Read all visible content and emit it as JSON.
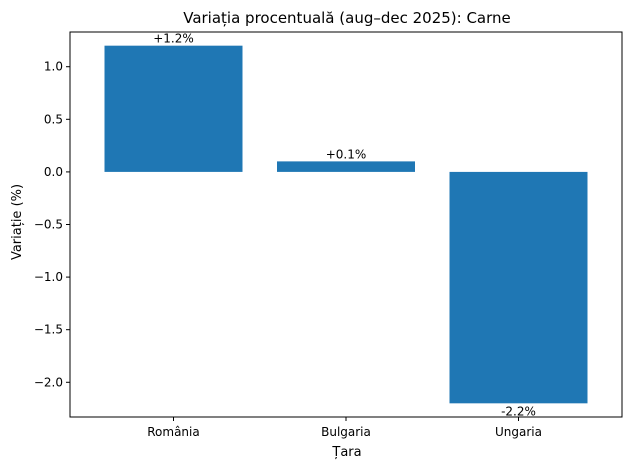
{
  "chart_data": {
    "type": "bar",
    "title": "Variația procentuală (aug–dec 2025): Carne",
    "xlabel": "Țara",
    "ylabel": "Variație (%)",
    "categories": [
      "România",
      "Bulgaria",
      "Ungaria"
    ],
    "values": [
      1.2,
      0.1,
      -2.2
    ],
    "data_labels": [
      "+1.2%",
      "+0.1%",
      "-2.2%"
    ],
    "ylim": [
      -2.33,
      1.33
    ],
    "yticks": [
      1.0,
      0.5,
      0.0,
      -0.5,
      -1.0,
      -1.5,
      -2.0
    ],
    "ytick_labels": [
      "1.0",
      "0.5",
      "0.0",
      "−0.5",
      "−1.0",
      "−1.5",
      "−2.0"
    ],
    "grid": false,
    "legend": "none",
    "bar_color": "#1f77b4"
  }
}
